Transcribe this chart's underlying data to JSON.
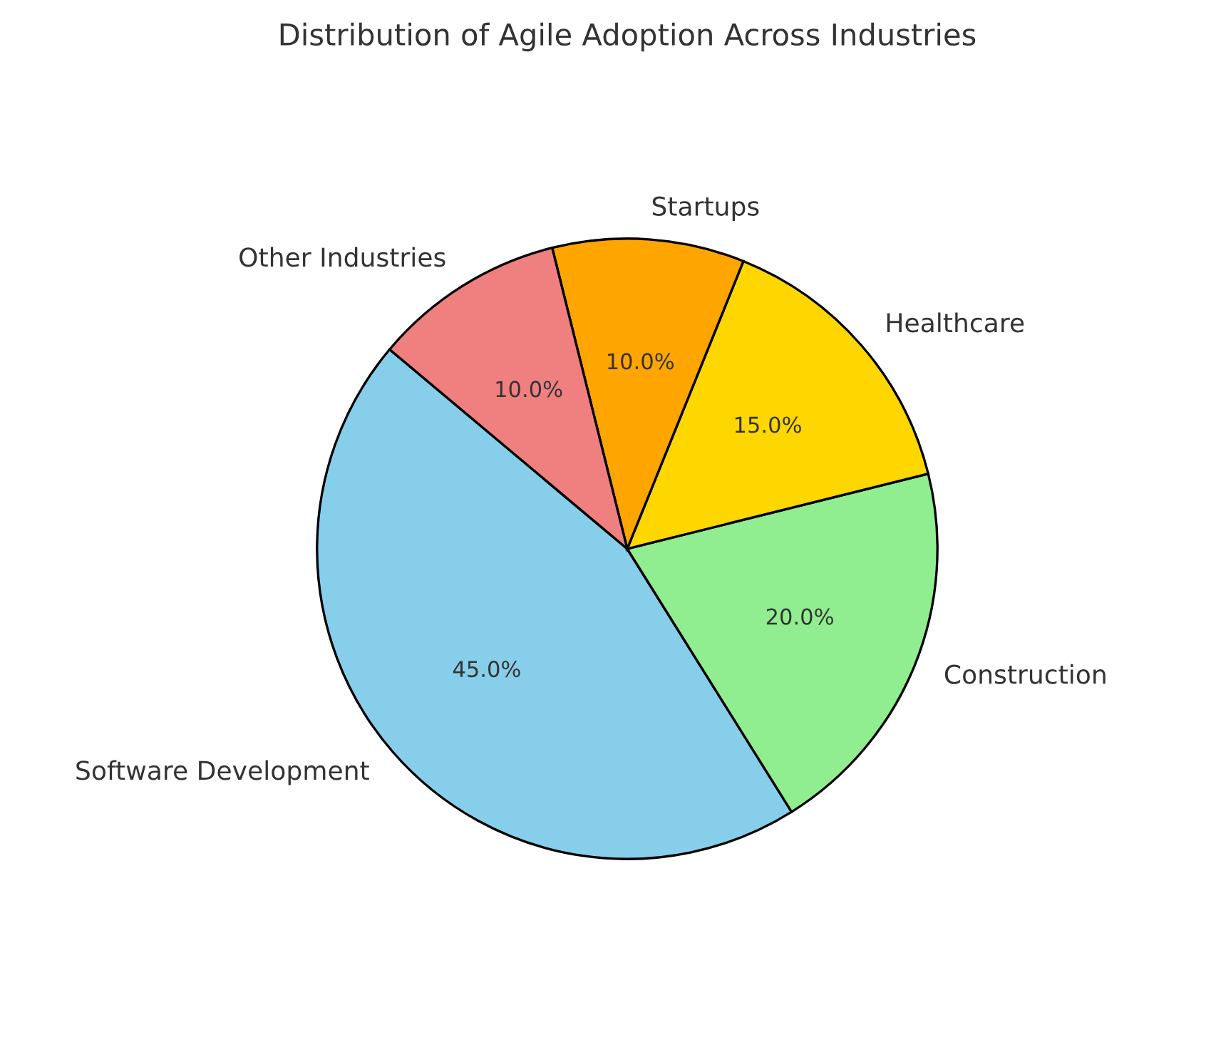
{
  "chart_data": {
    "type": "pie",
    "title": "Distribution of Agile Adoption Across Industries",
    "categories": [
      "Software Development",
      "Construction",
      "Healthcare",
      "Startups",
      "Other Industries"
    ],
    "values": [
      45,
      20,
      15,
      10,
      10
    ],
    "value_labels": [
      "45.0%",
      "20.0%",
      "15.0%",
      "10.0%",
      "10.0%"
    ],
    "colors": [
      "#87ceeb",
      "#90ee90",
      "#ffd700",
      "#ffa500",
      "#f08080"
    ]
  }
}
